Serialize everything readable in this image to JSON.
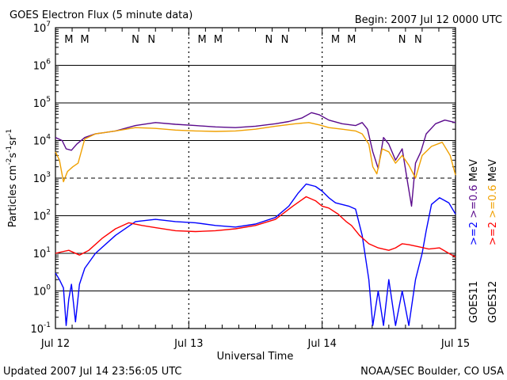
{
  "chart_data": {
    "type": "line",
    "title": "GOES Electron Flux (5 minute data)",
    "begin_label": "Begin: 2007 Jul 12 0000 UTC",
    "xlabel": "Universal Time",
    "ylabel": {
      "base": "Particles cm",
      "exp1": "-2",
      "s": "s",
      "exp2": "-1",
      "sr": "sr",
      "exp3": "-1"
    },
    "x_ticks": [
      "Jul 12",
      "Jul 13",
      "Jul 14",
      "Jul 15"
    ],
    "x_range_days": [
      0,
      3
    ],
    "y_scale": "log",
    "y_range": [
      0.1,
      10000000
    ],
    "y_ticks": [
      {
        "base": "10",
        "exp": "-1",
        "value": 0.1
      },
      {
        "base": "10",
        "exp": "0",
        "value": 1
      },
      {
        "base": "10",
        "exp": "1",
        "value": 10
      },
      {
        "base": "10",
        "exp": "2",
        "value": 100
      },
      {
        "base": "10",
        "exp": "3",
        "value": 1000
      },
      {
        "base": "10",
        "exp": "4",
        "value": 10000
      },
      {
        "base": "10",
        "exp": "5",
        "value": 100000
      },
      {
        "base": "10",
        "exp": "6",
        "value": 1000000
      },
      {
        "base": "10",
        "exp": "7",
        "value": 10000000
      }
    ],
    "threshold_line": 1000,
    "noon_midnight_markers": [
      {
        "label": "M",
        "day": 0.1,
        "color": "#e8000b"
      },
      {
        "label": "M",
        "day": 0.22,
        "color": "#1010ff"
      },
      {
        "label": "N",
        "day": 0.6,
        "color": "#e8000b"
      },
      {
        "label": "N",
        "day": 0.72,
        "color": "#1010ff"
      },
      {
        "label": "M",
        "day": 1.1,
        "color": "#e8000b"
      },
      {
        "label": "M",
        "day": 1.22,
        "color": "#1010ff"
      },
      {
        "label": "N",
        "day": 1.6,
        "color": "#e8000b"
      },
      {
        "label": "N",
        "day": 1.72,
        "color": "#1010ff"
      },
      {
        "label": "M",
        "day": 2.1,
        "color": "#e8000b"
      },
      {
        "label": "M",
        "day": 2.22,
        "color": "#1010ff"
      },
      {
        "label": "N",
        "day": 2.6,
        "color": "#e8000b"
      },
      {
        "label": "N",
        "day": 2.72,
        "color": "#1010ff"
      }
    ],
    "series": [
      {
        "name": "GOES11 >=0.6 MeV",
        "color": "#5a0a8c",
        "points": [
          [
            0.0,
            12000
          ],
          [
            0.05,
            10000
          ],
          [
            0.08,
            6000
          ],
          [
            0.12,
            5500
          ],
          [
            0.16,
            8000
          ],
          [
            0.22,
            12000
          ],
          [
            0.3,
            15000
          ],
          [
            0.45,
            18000
          ],
          [
            0.6,
            25000
          ],
          [
            0.75,
            30000
          ],
          [
            0.9,
            27000
          ],
          [
            1.05,
            25000
          ],
          [
            1.2,
            23000
          ],
          [
            1.35,
            22000
          ],
          [
            1.5,
            24000
          ],
          [
            1.65,
            28000
          ],
          [
            1.75,
            32000
          ],
          [
            1.85,
            40000
          ],
          [
            1.92,
            55000
          ],
          [
            1.98,
            48000
          ],
          [
            2.05,
            35000
          ],
          [
            2.15,
            28000
          ],
          [
            2.25,
            25000
          ],
          [
            2.3,
            30000
          ],
          [
            2.34,
            20000
          ],
          [
            2.38,
            5000
          ],
          [
            2.42,
            1800
          ],
          [
            2.46,
            12000
          ],
          [
            2.5,
            8000
          ],
          [
            2.55,
            3000
          ],
          [
            2.6,
            6000
          ],
          [
            2.64,
            800
          ],
          [
            2.67,
            180
          ],
          [
            2.7,
            2500
          ],
          [
            2.74,
            5000
          ],
          [
            2.78,
            15000
          ],
          [
            2.85,
            28000
          ],
          [
            2.92,
            35000
          ],
          [
            3.0,
            30000
          ]
        ]
      },
      {
        "name": "GOES12 >=0.6 MeV",
        "color": "#f0a000",
        "points": [
          [
            0.0,
            5000
          ],
          [
            0.03,
            3000
          ],
          [
            0.06,
            800
          ],
          [
            0.09,
            1500
          ],
          [
            0.13,
            2000
          ],
          [
            0.17,
            2500
          ],
          [
            0.22,
            11000
          ],
          [
            0.3,
            15000
          ],
          [
            0.45,
            18000
          ],
          [
            0.6,
            22000
          ],
          [
            0.75,
            21000
          ],
          [
            0.9,
            19000
          ],
          [
            1.05,
            18000
          ],
          [
            1.2,
            17500
          ],
          [
            1.35,
            18000
          ],
          [
            1.5,
            20000
          ],
          [
            1.65,
            24000
          ],
          [
            1.8,
            28000
          ],
          [
            1.9,
            30000
          ],
          [
            1.98,
            26000
          ],
          [
            2.05,
            22000
          ],
          [
            2.15,
            20000
          ],
          [
            2.25,
            18000
          ],
          [
            2.3,
            15000
          ],
          [
            2.35,
            8000
          ],
          [
            2.38,
            2000
          ],
          [
            2.41,
            1300
          ],
          [
            2.45,
            6000
          ],
          [
            2.5,
            5000
          ],
          [
            2.55,
            2500
          ],
          [
            2.6,
            4000
          ],
          [
            2.65,
            2200
          ],
          [
            2.7,
            1000
          ],
          [
            2.75,
            4000
          ],
          [
            2.82,
            7000
          ],
          [
            2.9,
            9000
          ],
          [
            2.96,
            4000
          ],
          [
            3.0,
            1200
          ]
        ]
      },
      {
        "name": "GOES11 >=2 MeV",
        "color": "#0000ff",
        "points": [
          [
            0.0,
            3
          ],
          [
            0.03,
            2
          ],
          [
            0.06,
            1.2
          ],
          [
            0.08,
            0.12
          ],
          [
            0.1,
            0.6
          ],
          [
            0.12,
            1.5
          ],
          [
            0.15,
            0.15
          ],
          [
            0.18,
            1.5
          ],
          [
            0.22,
            4
          ],
          [
            0.3,
            10
          ],
          [
            0.45,
            30
          ],
          [
            0.6,
            70
          ],
          [
            0.75,
            80
          ],
          [
            0.9,
            70
          ],
          [
            1.05,
            65
          ],
          [
            1.2,
            55
          ],
          [
            1.35,
            50
          ],
          [
            1.5,
            60
          ],
          [
            1.65,
            90
          ],
          [
            1.75,
            180
          ],
          [
            1.82,
            400
          ],
          [
            1.88,
            700
          ],
          [
            1.95,
            600
          ],
          [
            2.0,
            450
          ],
          [
            2.05,
            300
          ],
          [
            2.1,
            220
          ],
          [
            2.2,
            180
          ],
          [
            2.25,
            150
          ],
          [
            2.3,
            30
          ],
          [
            2.35,
            2
          ],
          [
            2.38,
            0.12
          ],
          [
            2.42,
            1
          ],
          [
            2.46,
            0.12
          ],
          [
            2.5,
            2
          ],
          [
            2.55,
            0.12
          ],
          [
            2.6,
            1
          ],
          [
            2.65,
            0.12
          ],
          [
            2.7,
            2
          ],
          [
            2.75,
            10
          ],
          [
            2.78,
            40
          ],
          [
            2.82,
            200
          ],
          [
            2.88,
            300
          ],
          [
            2.95,
            220
          ],
          [
            3.0,
            110
          ]
        ]
      },
      {
        "name": "GOES12 >=2 MeV",
        "color": "#ff0000",
        "points": [
          [
            0.0,
            10
          ],
          [
            0.05,
            11
          ],
          [
            0.1,
            12
          ],
          [
            0.18,
            9
          ],
          [
            0.25,
            12
          ],
          [
            0.35,
            25
          ],
          [
            0.45,
            45
          ],
          [
            0.55,
            65
          ],
          [
            0.65,
            55
          ],
          [
            0.75,
            48
          ],
          [
            0.9,
            40
          ],
          [
            1.05,
            38
          ],
          [
            1.2,
            40
          ],
          [
            1.35,
            45
          ],
          [
            1.5,
            55
          ],
          [
            1.65,
            80
          ],
          [
            1.78,
            180
          ],
          [
            1.88,
            320
          ],
          [
            1.95,
            250
          ],
          [
            2.0,
            180
          ],
          [
            2.05,
            160
          ],
          [
            2.12,
            110
          ],
          [
            2.18,
            70
          ],
          [
            2.22,
            55
          ],
          [
            2.28,
            30
          ],
          [
            2.35,
            18
          ],
          [
            2.42,
            14
          ],
          [
            2.5,
            12
          ],
          [
            2.55,
            14
          ],
          [
            2.6,
            18
          ],
          [
            2.65,
            17
          ],
          [
            2.72,
            15
          ],
          [
            2.8,
            13
          ],
          [
            2.88,
            14
          ],
          [
            2.95,
            10
          ],
          [
            3.0,
            8
          ]
        ]
      }
    ],
    "legend_right": [
      {
        "text": ">=2",
        "color": "#0000ff"
      },
      {
        "text": ">=0.6",
        "color": "#5a0a8c"
      },
      {
        "text": "MeV",
        "color": "#000000"
      },
      {
        "text": ">=2",
        "color": "#ff0000"
      },
      {
        "text": ">=0.6",
        "color": "#f0a000"
      },
      {
        "text": "MeV",
        "color": "#000000"
      },
      {
        "text": "GOES11",
        "color": "#000000"
      },
      {
        "text": "GOES12",
        "color": "#000000"
      }
    ]
  },
  "footer": {
    "updated": "Updated 2007 Jul 14 23:56:05 UTC",
    "source": "NOAA/SEC Boulder, CO USA"
  }
}
